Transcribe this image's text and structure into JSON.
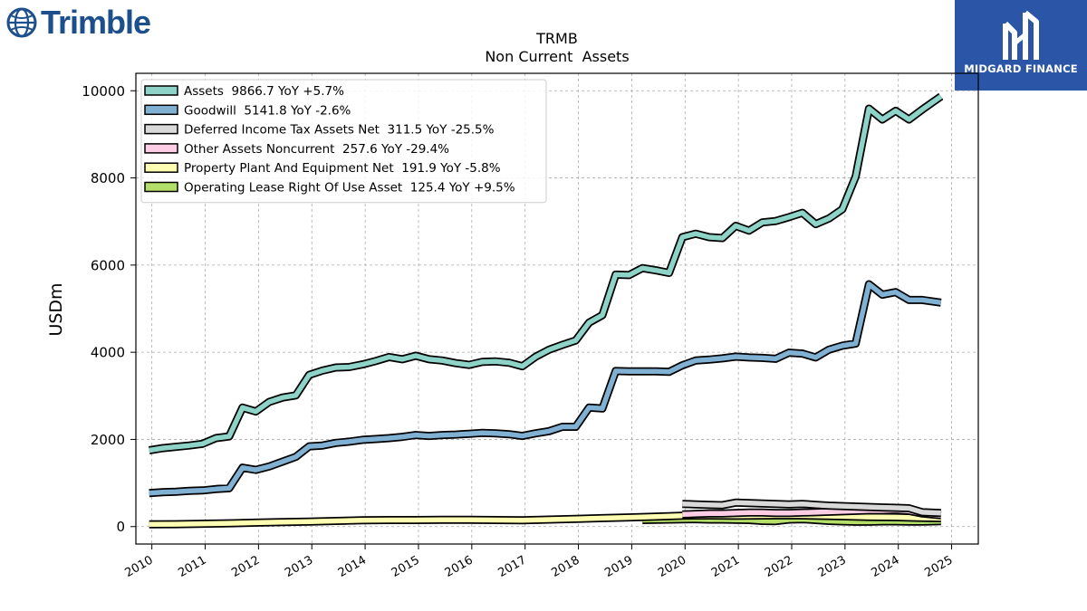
{
  "brand_left": {
    "name": "Trimble",
    "color": "#1c4f8c"
  },
  "brand_right": {
    "name": "MIDGARD FINANCE",
    "bg_color": "#2b56a8"
  },
  "chart_data": {
    "type": "line",
    "title": "TRMB",
    "subtitle": "Non Current  Assets",
    "ylabel": "USDm",
    "xlabel": "",
    "ylim": [
      -400,
      10400
    ],
    "xlim": [
      2009.7,
      2025.5
    ],
    "yticks": [
      0,
      2000,
      4000,
      6000,
      8000,
      10000
    ],
    "xticks": [
      "2010",
      "2011",
      "2012",
      "2013",
      "2014",
      "2015",
      "2016",
      "2017",
      "2018",
      "2019",
      "2020",
      "2021",
      "2022",
      "2023",
      "2024",
      "2025"
    ],
    "grid": true,
    "legend_position": "top-left",
    "series": [
      {
        "name": "Assets  9866.7 YoY +5.7%",
        "color": "#8dd3c7",
        "points": [
          [
            2009.95,
            1750
          ],
          [
            2010.2,
            1800
          ],
          [
            2010.45,
            1830
          ],
          [
            2010.7,
            1860
          ],
          [
            2010.95,
            1900
          ],
          [
            2011.2,
            2030
          ],
          [
            2011.45,
            2070
          ],
          [
            2011.7,
            2730
          ],
          [
            2011.95,
            2640
          ],
          [
            2012.2,
            2860
          ],
          [
            2012.45,
            2960
          ],
          [
            2012.7,
            3010
          ],
          [
            2012.95,
            3480
          ],
          [
            2013.2,
            3580
          ],
          [
            2013.45,
            3650
          ],
          [
            2013.7,
            3660
          ],
          [
            2013.95,
            3720
          ],
          [
            2014.2,
            3800
          ],
          [
            2014.45,
            3890
          ],
          [
            2014.7,
            3840
          ],
          [
            2014.95,
            3920
          ],
          [
            2015.2,
            3840
          ],
          [
            2015.45,
            3810
          ],
          [
            2015.7,
            3750
          ],
          [
            2015.95,
            3710
          ],
          [
            2016.2,
            3780
          ],
          [
            2016.45,
            3790
          ],
          [
            2016.7,
            3760
          ],
          [
            2016.95,
            3680
          ],
          [
            2017.2,
            3900
          ],
          [
            2017.45,
            4060
          ],
          [
            2017.7,
            4170
          ],
          [
            2017.95,
            4270
          ],
          [
            2018.2,
            4680
          ],
          [
            2018.45,
            4850
          ],
          [
            2018.7,
            5780
          ],
          [
            2018.95,
            5770
          ],
          [
            2019.2,
            5930
          ],
          [
            2019.45,
            5880
          ],
          [
            2019.7,
            5820
          ],
          [
            2019.95,
            6640
          ],
          [
            2020.2,
            6720
          ],
          [
            2020.45,
            6640
          ],
          [
            2020.7,
            6620
          ],
          [
            2020.95,
            6900
          ],
          [
            2021.2,
            6790
          ],
          [
            2021.45,
            6980
          ],
          [
            2021.7,
            7010
          ],
          [
            2021.95,
            7100
          ],
          [
            2022.2,
            7200
          ],
          [
            2022.45,
            6940
          ],
          [
            2022.7,
            7070
          ],
          [
            2022.95,
            7280
          ],
          [
            2023.2,
            8030
          ],
          [
            2023.45,
            9590
          ],
          [
            2023.7,
            9340
          ],
          [
            2023.95,
            9540
          ],
          [
            2024.2,
            9340
          ],
          [
            2024.45,
            9570
          ],
          [
            2024.8,
            9870
          ]
        ]
      },
      {
        "name": "Goodwill  5141.8 YoY -2.6%",
        "color": "#80b1d3",
        "points": [
          [
            2009.95,
            770
          ],
          [
            2010.2,
            790
          ],
          [
            2010.45,
            800
          ],
          [
            2010.7,
            820
          ],
          [
            2010.95,
            830
          ],
          [
            2011.2,
            860
          ],
          [
            2011.45,
            880
          ],
          [
            2011.7,
            1350
          ],
          [
            2011.95,
            1300
          ],
          [
            2012.2,
            1380
          ],
          [
            2012.45,
            1490
          ],
          [
            2012.7,
            1600
          ],
          [
            2012.95,
            1840
          ],
          [
            2013.2,
            1860
          ],
          [
            2013.45,
            1920
          ],
          [
            2013.7,
            1950
          ],
          [
            2013.95,
            1990
          ],
          [
            2014.2,
            2010
          ],
          [
            2014.45,
            2030
          ],
          [
            2014.7,
            2060
          ],
          [
            2014.95,
            2100
          ],
          [
            2015.2,
            2080
          ],
          [
            2015.45,
            2100
          ],
          [
            2015.7,
            2110
          ],
          [
            2015.95,
            2130
          ],
          [
            2016.2,
            2150
          ],
          [
            2016.45,
            2140
          ],
          [
            2016.7,
            2120
          ],
          [
            2016.95,
            2080
          ],
          [
            2017.2,
            2140
          ],
          [
            2017.45,
            2190
          ],
          [
            2017.7,
            2290
          ],
          [
            2017.95,
            2290
          ],
          [
            2018.2,
            2730
          ],
          [
            2018.45,
            2710
          ],
          [
            2018.7,
            3570
          ],
          [
            2018.95,
            3560
          ],
          [
            2019.2,
            3560
          ],
          [
            2019.45,
            3560
          ],
          [
            2019.7,
            3550
          ],
          [
            2019.95,
            3700
          ],
          [
            2020.2,
            3810
          ],
          [
            2020.45,
            3830
          ],
          [
            2020.7,
            3860
          ],
          [
            2020.95,
            3900
          ],
          [
            2021.2,
            3880
          ],
          [
            2021.45,
            3870
          ],
          [
            2021.7,
            3850
          ],
          [
            2021.95,
            3990
          ],
          [
            2022.2,
            3970
          ],
          [
            2022.45,
            3880
          ],
          [
            2022.7,
            4060
          ],
          [
            2022.95,
            4150
          ],
          [
            2023.2,
            4200
          ],
          [
            2023.45,
            5560
          ],
          [
            2023.7,
            5320
          ],
          [
            2023.95,
            5380
          ],
          [
            2024.2,
            5200
          ],
          [
            2024.45,
            5200
          ],
          [
            2024.8,
            5140
          ]
        ]
      },
      {
        "name": "Deferred Income Tax Assets Net  311.5 YoY -25.5%",
        "color": "#d9d9d9",
        "points": [
          [
            2019.95,
            520
          ],
          [
            2020.2,
            510
          ],
          [
            2020.45,
            500
          ],
          [
            2020.7,
            490
          ],
          [
            2020.95,
            550
          ],
          [
            2021.2,
            540
          ],
          [
            2021.45,
            530
          ],
          [
            2021.7,
            520
          ],
          [
            2021.95,
            510
          ],
          [
            2022.2,
            520
          ],
          [
            2022.45,
            500
          ],
          [
            2022.7,
            480
          ],
          [
            2022.95,
            470
          ],
          [
            2023.2,
            460
          ],
          [
            2023.45,
            450
          ],
          [
            2023.7,
            440
          ],
          [
            2023.95,
            430
          ],
          [
            2024.2,
            420
          ],
          [
            2024.45,
            330
          ],
          [
            2024.8,
            312
          ]
        ]
      },
      {
        "name": "Other Assets Noncurrent  257.6 YoY -29.4%",
        "color": "#fccde5",
        "points": [
          [
            2019.95,
            280
          ],
          [
            2020.2,
            290
          ],
          [
            2020.45,
            300
          ],
          [
            2020.7,
            300
          ],
          [
            2020.95,
            310
          ],
          [
            2021.2,
            320
          ],
          [
            2021.45,
            320
          ],
          [
            2021.7,
            310
          ],
          [
            2021.95,
            310
          ],
          [
            2022.2,
            320
          ],
          [
            2022.45,
            330
          ],
          [
            2022.7,
            340
          ],
          [
            2022.95,
            350
          ],
          [
            2023.2,
            360
          ],
          [
            2023.45,
            370
          ],
          [
            2023.7,
            370
          ],
          [
            2023.95,
            380
          ],
          [
            2024.2,
            360
          ],
          [
            2024.45,
            300
          ],
          [
            2024.8,
            258
          ]
        ]
      },
      {
        "name": "Property Plant And Equipment Net  191.9 YoY -5.8%",
        "color": "#ffffb3",
        "points": [
          [
            2009.95,
            50
          ],
          [
            2010.45,
            55
          ],
          [
            2010.95,
            65
          ],
          [
            2011.45,
            75
          ],
          [
            2011.95,
            90
          ],
          [
            2012.45,
            105
          ],
          [
            2012.95,
            115
          ],
          [
            2013.45,
            130
          ],
          [
            2013.95,
            145
          ],
          [
            2014.45,
            150
          ],
          [
            2014.95,
            150
          ],
          [
            2015.45,
            155
          ],
          [
            2015.95,
            155
          ],
          [
            2016.45,
            150
          ],
          [
            2016.95,
            145
          ],
          [
            2017.45,
            160
          ],
          [
            2017.95,
            175
          ],
          [
            2018.45,
            195
          ],
          [
            2018.95,
            210
          ],
          [
            2019.45,
            230
          ],
          [
            2019.95,
            250
          ],
          [
            2020.45,
            255
          ],
          [
            2020.95,
            250
          ],
          [
            2021.45,
            255
          ],
          [
            2021.95,
            260
          ],
          [
            2022.45,
            250
          ],
          [
            2022.95,
            235
          ],
          [
            2023.45,
            220
          ],
          [
            2023.95,
            215
          ],
          [
            2024.45,
            200
          ],
          [
            2024.8,
            192
          ]
        ]
      },
      {
        "name": "Operating Lease Right Of Use Asset  125.4 YoY +9.5%",
        "color": "#b3de69",
        "points": [
          [
            2019.2,
            150
          ],
          [
            2019.45,
            155
          ],
          [
            2019.7,
            160
          ],
          [
            2019.95,
            165
          ],
          [
            2020.2,
            170
          ],
          [
            2020.45,
            160
          ],
          [
            2020.7,
            160
          ],
          [
            2020.95,
            155
          ],
          [
            2021.2,
            150
          ],
          [
            2021.45,
            130
          ],
          [
            2021.7,
            125
          ],
          [
            2021.95,
            160
          ],
          [
            2022.2,
            170
          ],
          [
            2022.45,
            150
          ],
          [
            2022.7,
            130
          ],
          [
            2022.95,
            120
          ],
          [
            2023.2,
            110
          ],
          [
            2023.45,
            110
          ],
          [
            2023.7,
            120
          ],
          [
            2023.95,
            120
          ],
          [
            2024.2,
            115
          ],
          [
            2024.45,
            115
          ],
          [
            2024.8,
            125
          ]
        ]
      }
    ]
  }
}
